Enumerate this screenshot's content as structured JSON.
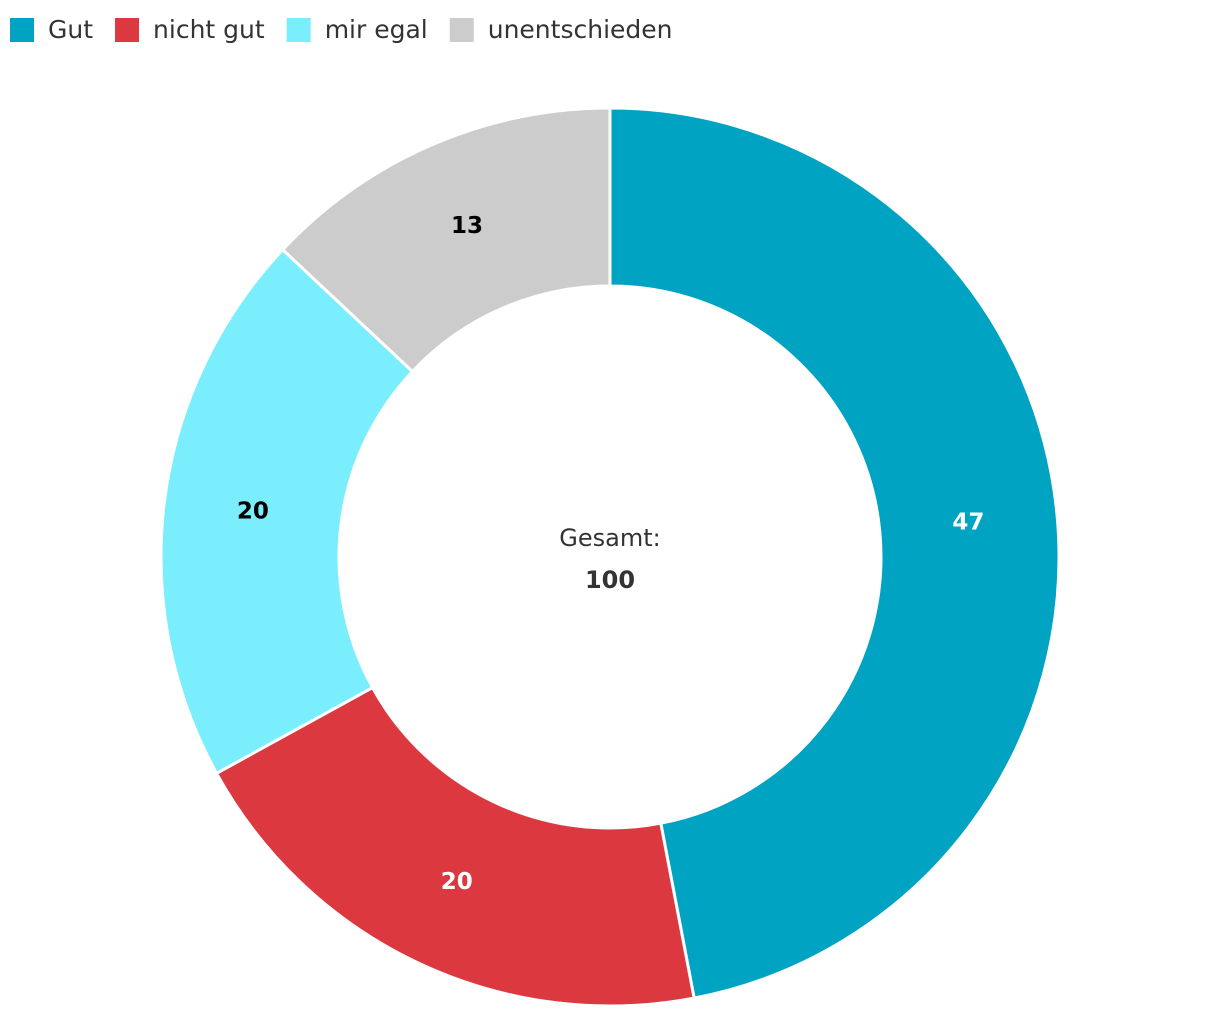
{
  "chart_data": {
    "type": "donut",
    "categories": [
      "Gut",
      "nicht gut",
      "mir egal",
      "unentschieden"
    ],
    "values": [
      47,
      20,
      20,
      13
    ],
    "colors": [
      "#00a3c2",
      "#db3840",
      "#7aeefd",
      "#cccccc"
    ],
    "legend": "top-left",
    "center_label": "Gesamt:",
    "total": 100
  }
}
